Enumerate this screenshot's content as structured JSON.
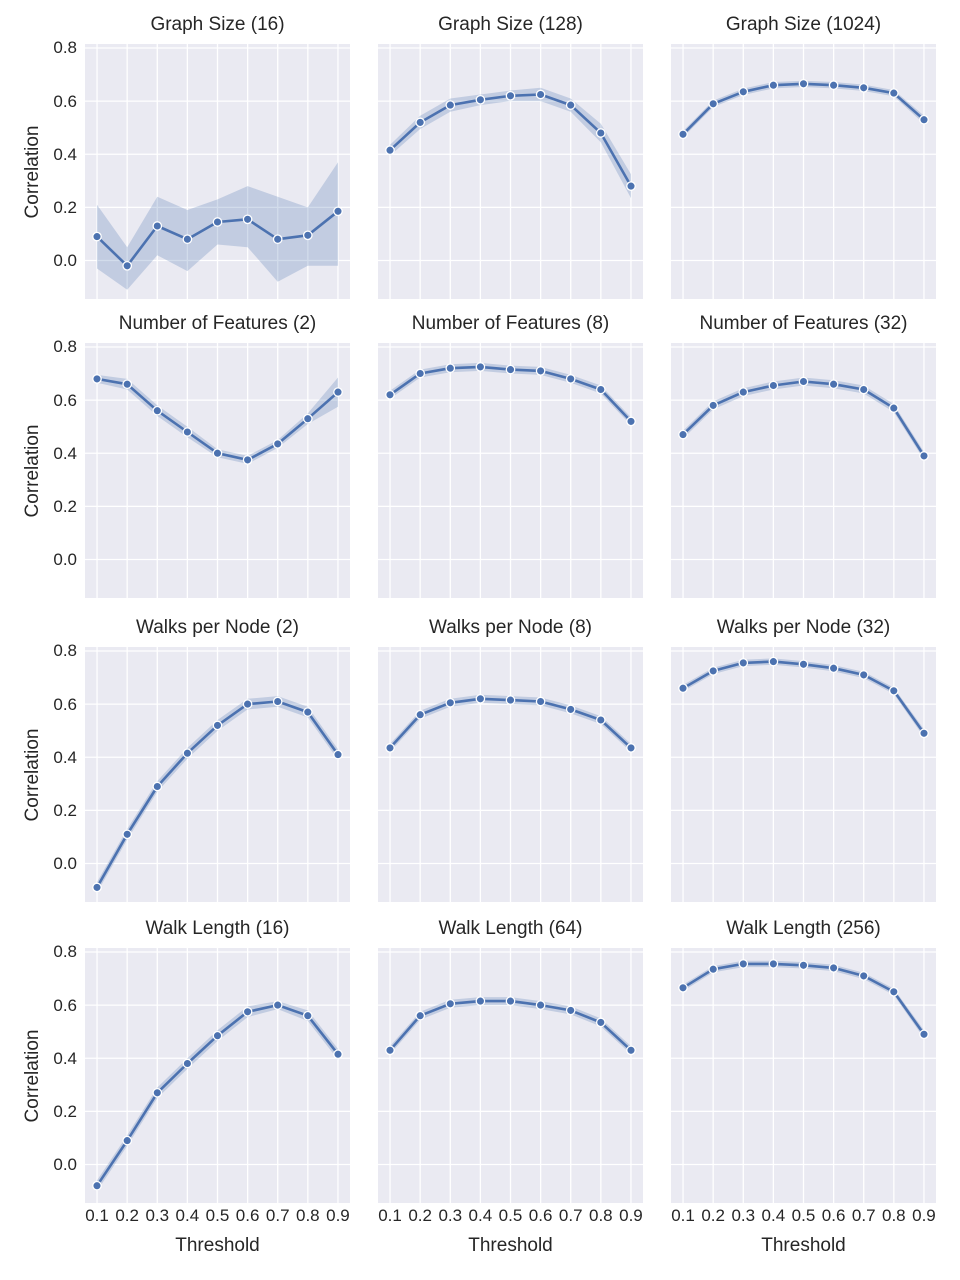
{
  "figure": {
    "background": "#ffffff"
  },
  "axes": {
    "xlabel": "Threshold",
    "ylabel": "Correlation",
    "xticks": [
      "0.1",
      "0.2",
      "0.3",
      "0.4",
      "0.5",
      "0.6",
      "0.7",
      "0.8",
      "0.9"
    ],
    "yticks": [
      "0.8",
      "0.6",
      "0.4",
      "0.2",
      "0.0"
    ],
    "xtick_values": [
      0.1,
      0.2,
      0.3,
      0.4,
      0.5,
      0.6,
      0.7,
      0.8,
      0.9
    ],
    "ytick_values": [
      0.8,
      0.6,
      0.4,
      0.2,
      0.0
    ],
    "xlim": [
      0.06,
      0.94
    ],
    "ylim": [
      -0.145,
      0.815
    ],
    "grid": true,
    "background": "#eaeaf2",
    "grid_color": "#ffffff",
    "text_color": "#262626"
  },
  "style": {
    "line_color": "#4c72b0",
    "marker_fill": "#4c72b0",
    "marker_edge": "#ffffff",
    "band_color": "#4c72b0",
    "band_opacity": 0.25
  },
  "chart_data": [
    {
      "type": "line",
      "title": "Graph Size (16)",
      "x": [
        0.1,
        0.2,
        0.3,
        0.4,
        0.5,
        0.6,
        0.7,
        0.8,
        0.9
      ],
      "y": [
        0.09,
        -0.02,
        0.13,
        0.08,
        0.145,
        0.155,
        0.08,
        0.095,
        0.185
      ],
      "band_upper": [
        0.21,
        0.05,
        0.24,
        0.19,
        0.23,
        0.28,
        0.24,
        0.2,
        0.37
      ],
      "band_lower": [
        -0.03,
        -0.11,
        0.02,
        -0.04,
        0.06,
        0.05,
        -0.08,
        -0.02,
        -0.02
      ]
    },
    {
      "type": "line",
      "title": "Graph Size (128)",
      "x": [
        0.1,
        0.2,
        0.3,
        0.4,
        0.5,
        0.6,
        0.7,
        0.8,
        0.9
      ],
      "y": [
        0.415,
        0.52,
        0.585,
        0.605,
        0.62,
        0.625,
        0.585,
        0.48,
        0.28
      ],
      "band_upper": [
        0.435,
        0.545,
        0.61,
        0.625,
        0.64,
        0.65,
        0.61,
        0.515,
        0.325
      ],
      "band_lower": [
        0.395,
        0.495,
        0.56,
        0.585,
        0.6,
        0.6,
        0.56,
        0.445,
        0.235
      ]
    },
    {
      "type": "line",
      "title": "Graph Size (1024)",
      "x": [
        0.1,
        0.2,
        0.3,
        0.4,
        0.5,
        0.6,
        0.7,
        0.8,
        0.9
      ],
      "y": [
        0.475,
        0.59,
        0.635,
        0.66,
        0.665,
        0.66,
        0.65,
        0.63,
        0.53
      ],
      "band_upper": [
        0.487,
        0.602,
        0.647,
        0.672,
        0.677,
        0.672,
        0.662,
        0.642,
        0.545
      ],
      "band_lower": [
        0.463,
        0.578,
        0.623,
        0.648,
        0.653,
        0.648,
        0.638,
        0.618,
        0.515
      ]
    },
    {
      "type": "line",
      "title": "Number of Features (2)",
      "x": [
        0.1,
        0.2,
        0.3,
        0.4,
        0.5,
        0.6,
        0.7,
        0.8,
        0.9
      ],
      "y": [
        0.68,
        0.66,
        0.56,
        0.48,
        0.4,
        0.375,
        0.435,
        0.53,
        0.63
      ],
      "band_upper": [
        0.695,
        0.68,
        0.58,
        0.5,
        0.415,
        0.39,
        0.45,
        0.55,
        0.685
      ],
      "band_lower": [
        0.665,
        0.64,
        0.54,
        0.46,
        0.385,
        0.36,
        0.42,
        0.51,
        0.575
      ]
    },
    {
      "type": "line",
      "title": "Number of Features (8)",
      "x": [
        0.1,
        0.2,
        0.3,
        0.4,
        0.5,
        0.6,
        0.7,
        0.8,
        0.9
      ],
      "y": [
        0.62,
        0.7,
        0.72,
        0.725,
        0.715,
        0.71,
        0.68,
        0.64,
        0.52
      ],
      "band_upper": [
        0.635,
        0.715,
        0.735,
        0.74,
        0.73,
        0.725,
        0.695,
        0.655,
        0.535
      ],
      "band_lower": [
        0.605,
        0.685,
        0.705,
        0.71,
        0.7,
        0.695,
        0.665,
        0.625,
        0.505
      ]
    },
    {
      "type": "line",
      "title": "Number of Features (32)",
      "x": [
        0.1,
        0.2,
        0.3,
        0.4,
        0.5,
        0.6,
        0.7,
        0.8,
        0.9
      ],
      "y": [
        0.47,
        0.58,
        0.63,
        0.655,
        0.67,
        0.66,
        0.64,
        0.57,
        0.39
      ],
      "band_upper": [
        0.485,
        0.595,
        0.645,
        0.67,
        0.685,
        0.675,
        0.655,
        0.585,
        0.405
      ],
      "band_lower": [
        0.455,
        0.565,
        0.615,
        0.64,
        0.655,
        0.645,
        0.625,
        0.555,
        0.375
      ]
    },
    {
      "type": "line",
      "title": "Walks per Node (2)",
      "x": [
        0.1,
        0.2,
        0.3,
        0.4,
        0.5,
        0.6,
        0.7,
        0.8,
        0.9
      ],
      "y": [
        -0.09,
        0.11,
        0.29,
        0.415,
        0.52,
        0.6,
        0.61,
        0.57,
        0.41
      ],
      "band_upper": [
        -0.07,
        0.13,
        0.31,
        0.435,
        0.54,
        0.62,
        0.63,
        0.59,
        0.43
      ],
      "band_lower": [
        -0.11,
        0.09,
        0.27,
        0.395,
        0.5,
        0.58,
        0.59,
        0.55,
        0.39
      ]
    },
    {
      "type": "line",
      "title": "Walks per Node (8)",
      "x": [
        0.1,
        0.2,
        0.3,
        0.4,
        0.5,
        0.6,
        0.7,
        0.8,
        0.9
      ],
      "y": [
        0.435,
        0.56,
        0.605,
        0.62,
        0.615,
        0.61,
        0.58,
        0.54,
        0.435
      ],
      "band_upper": [
        0.45,
        0.575,
        0.62,
        0.635,
        0.63,
        0.625,
        0.595,
        0.555,
        0.45
      ],
      "band_lower": [
        0.42,
        0.545,
        0.59,
        0.605,
        0.6,
        0.595,
        0.565,
        0.525,
        0.42
      ]
    },
    {
      "type": "line",
      "title": "Walks per Node (32)",
      "x": [
        0.1,
        0.2,
        0.3,
        0.4,
        0.5,
        0.6,
        0.7,
        0.8,
        0.9
      ],
      "y": [
        0.66,
        0.725,
        0.755,
        0.76,
        0.75,
        0.735,
        0.71,
        0.65,
        0.49
      ],
      "band_upper": [
        0.672,
        0.737,
        0.767,
        0.772,
        0.762,
        0.747,
        0.722,
        0.662,
        0.505
      ],
      "band_lower": [
        0.648,
        0.713,
        0.743,
        0.748,
        0.738,
        0.723,
        0.698,
        0.638,
        0.475
      ]
    },
    {
      "type": "line",
      "title": "Walk Length (16)",
      "x": [
        0.1,
        0.2,
        0.3,
        0.4,
        0.5,
        0.6,
        0.7,
        0.8,
        0.9
      ],
      "y": [
        -0.08,
        0.09,
        0.27,
        0.38,
        0.485,
        0.575,
        0.6,
        0.56,
        0.415
      ],
      "band_upper": [
        -0.06,
        0.11,
        0.29,
        0.4,
        0.505,
        0.595,
        0.615,
        0.58,
        0.435
      ],
      "band_lower": [
        -0.1,
        0.07,
        0.25,
        0.36,
        0.465,
        0.555,
        0.585,
        0.54,
        0.395
      ]
    },
    {
      "type": "line",
      "title": "Walk Length (64)",
      "x": [
        0.1,
        0.2,
        0.3,
        0.4,
        0.5,
        0.6,
        0.7,
        0.8,
        0.9
      ],
      "y": [
        0.43,
        0.56,
        0.605,
        0.615,
        0.615,
        0.6,
        0.58,
        0.535,
        0.43
      ],
      "band_upper": [
        0.445,
        0.575,
        0.62,
        0.63,
        0.63,
        0.615,
        0.595,
        0.55,
        0.445
      ],
      "band_lower": [
        0.415,
        0.545,
        0.59,
        0.6,
        0.6,
        0.585,
        0.565,
        0.52,
        0.415
      ]
    },
    {
      "type": "line",
      "title": "Walk Length (256)",
      "x": [
        0.1,
        0.2,
        0.3,
        0.4,
        0.5,
        0.6,
        0.7,
        0.8,
        0.9
      ],
      "y": [
        0.665,
        0.735,
        0.755,
        0.755,
        0.75,
        0.74,
        0.71,
        0.65,
        0.49
      ],
      "band_upper": [
        0.677,
        0.747,
        0.767,
        0.767,
        0.762,
        0.752,
        0.722,
        0.662,
        0.505
      ],
      "band_lower": [
        0.653,
        0.723,
        0.743,
        0.743,
        0.738,
        0.728,
        0.698,
        0.638,
        0.475
      ]
    }
  ]
}
